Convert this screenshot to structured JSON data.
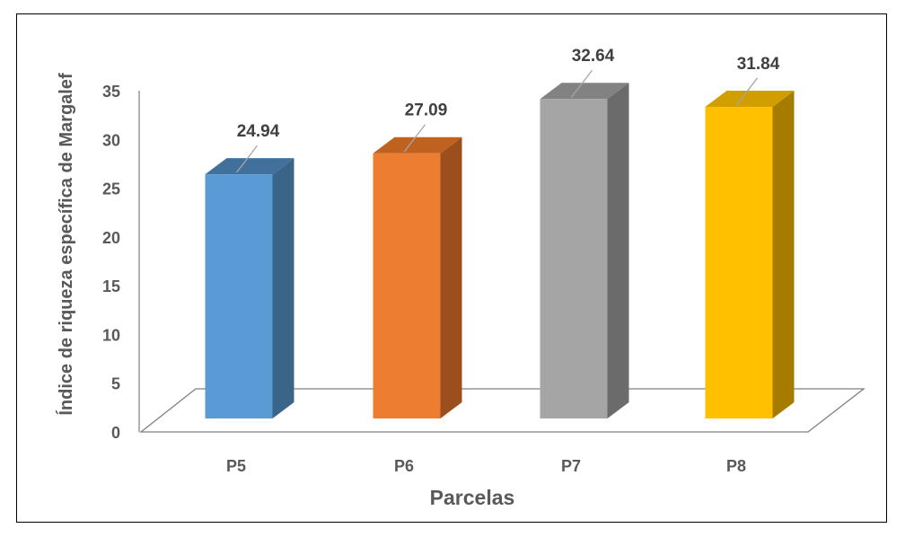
{
  "chart_data": {
    "type": "bar",
    "categories": [
      "P5",
      "P6",
      "P7",
      "P8"
    ],
    "values": [
      24.94,
      27.09,
      32.64,
      31.84
    ],
    "data_labels": [
      "24.94",
      "27.09",
      "32.64",
      "31.84"
    ],
    "xlabel": "Parcelas",
    "ylabel": "Índice de riqueza específica de Margalef",
    "ylim": [
      0,
      35
    ],
    "yticks": [
      "0",
      "5",
      "10",
      "15",
      "20",
      "25",
      "30",
      "35"
    ],
    "grid": false,
    "legend": "none",
    "style": "3d-column",
    "colors": [
      {
        "front": "#5B9BD5",
        "side": "#3A6589",
        "top": "#41709C"
      },
      {
        "front": "#ED7D31",
        "side": "#9C4E1C",
        "top": "#C0621F"
      },
      {
        "front": "#A5A5A5",
        "side": "#6B6B6B",
        "top": "#828282"
      },
      {
        "front": "#FFC000",
        "side": "#A67C00",
        "top": "#D19E00"
      }
    ]
  }
}
